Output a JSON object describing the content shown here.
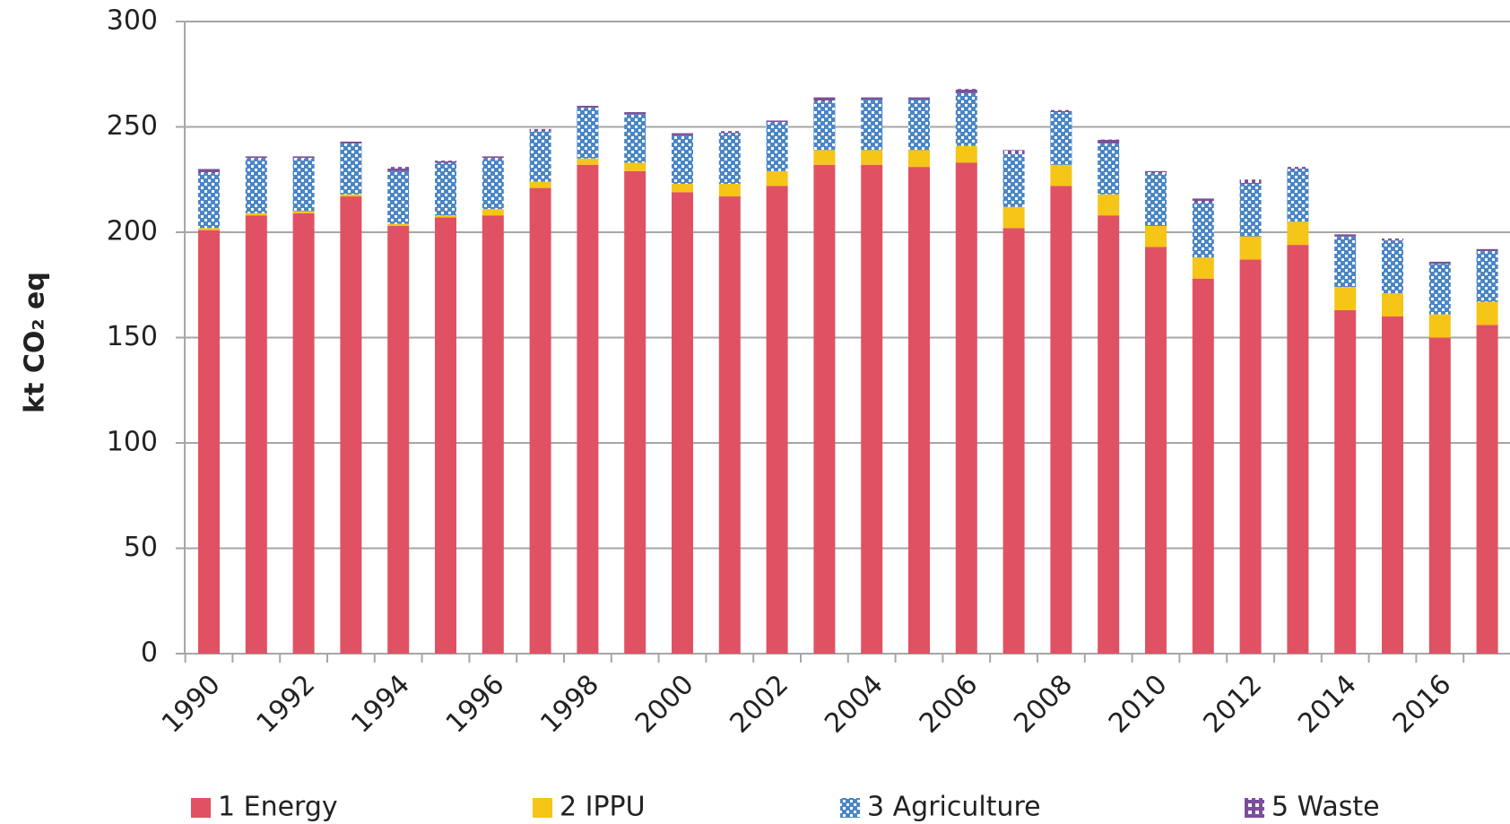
{
  "chart_data": {
    "type": "stacked_bar",
    "y_label": "kt CO₂ eq",
    "categories": [
      "1990",
      null,
      "1992",
      null,
      "1994",
      null,
      "1996",
      null,
      "1998",
      null,
      "2000",
      null,
      "2002",
      null,
      "2004",
      null,
      "2006",
      null,
      "2008",
      null,
      "2010",
      null,
      "2012",
      null,
      "2014",
      null,
      "2016",
      null
    ],
    "series": [
      {
        "name": "1 Energy",
        "color": "#e05263",
        "values": [
          201,
          208,
          209,
          217,
          203,
          207,
          208,
          221,
          232,
          229,
          219,
          217,
          222,
          232,
          232,
          231,
          233,
          202,
          222,
          208,
          193,
          178,
          187,
          194,
          163,
          160,
          150,
          156
        ]
      },
      {
        "name": "2 IPPU",
        "color": "#f5c518",
        "values": [
          1,
          1,
          1,
          1,
          1,
          1,
          3,
          3,
          3,
          4,
          4,
          6,
          7,
          7,
          7,
          8,
          8,
          10,
          10,
          10,
          10,
          10,
          11,
          11,
          11,
          11,
          11,
          11
        ]
      },
      {
        "name": "3 Agriculture",
        "color": "#4a86c6",
        "values": [
          26,
          26,
          25,
          24,
          25,
          25,
          24,
          24,
          24,
          23,
          23,
          24,
          23,
          23,
          24,
          24,
          25,
          25,
          25,
          24,
          25,
          26,
          25,
          25,
          24,
          25,
          24,
          24
        ]
      },
      {
        "name": "5 Waste",
        "color": "#7b4f9a",
        "values": [
          2,
          1,
          1,
          1,
          2,
          1,
          1,
          1,
          1,
          1,
          1,
          1,
          1,
          2,
          1,
          1,
          2,
          2,
          1,
          2,
          1,
          2,
          2,
          1,
          1,
          1,
          1,
          1
        ]
      }
    ],
    "ylim": [
      0,
      300
    ],
    "yticks": [
      0,
      50,
      100,
      150,
      200,
      250,
      300
    ],
    "grid": true,
    "legend": "bottom"
  }
}
